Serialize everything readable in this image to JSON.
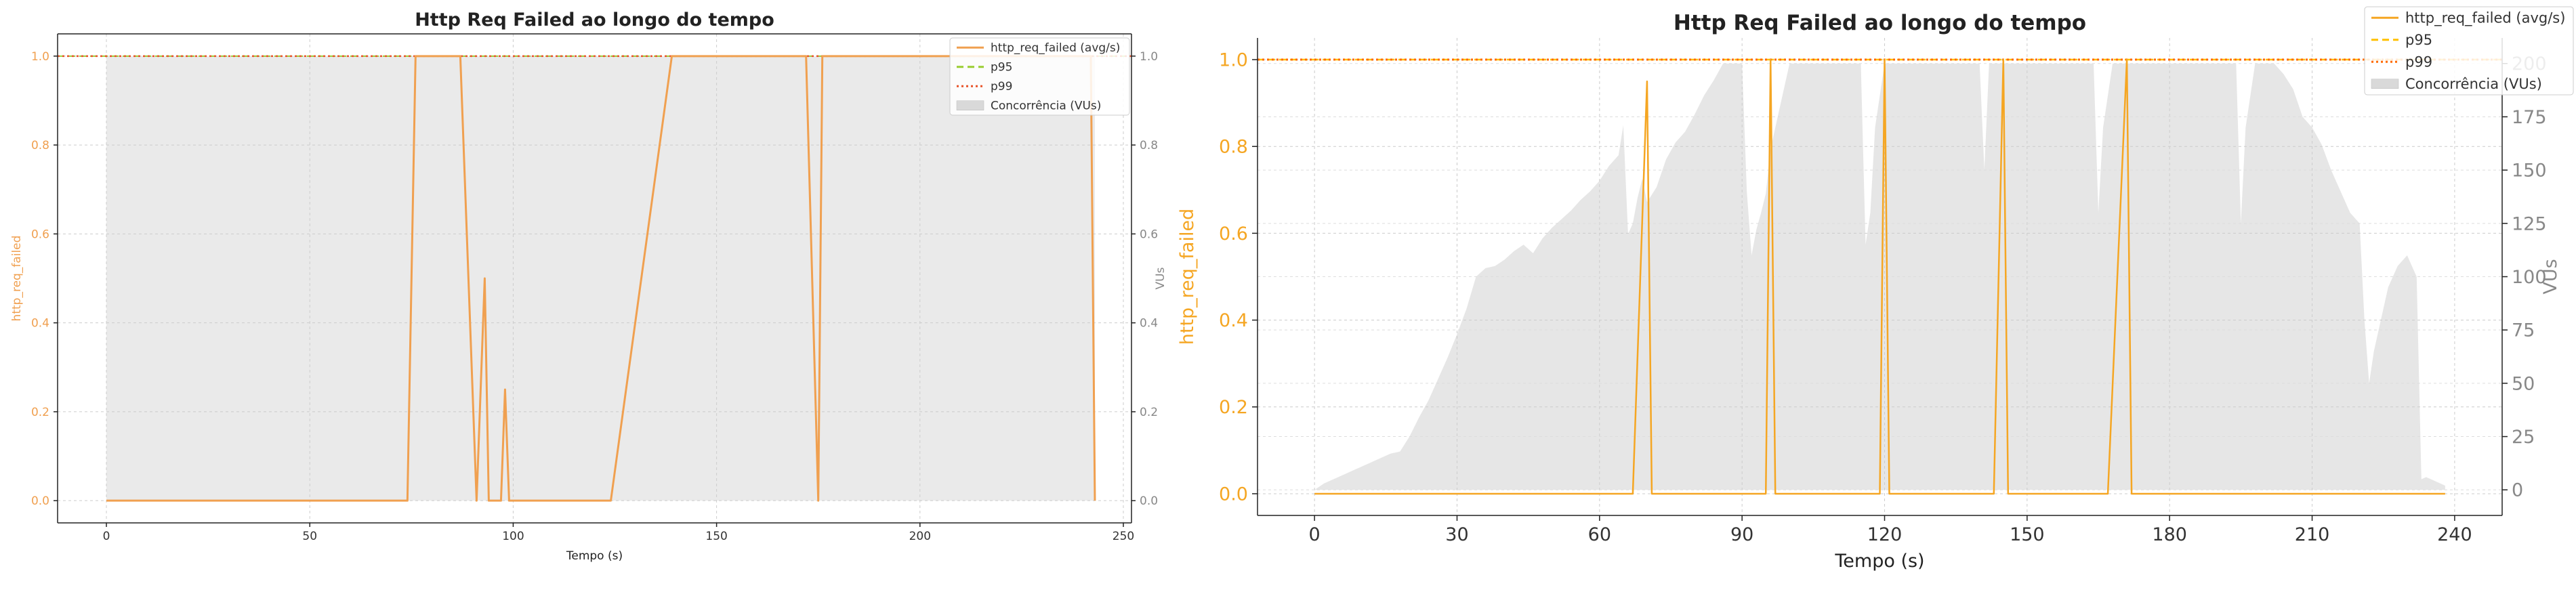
{
  "chart_data": [
    {
      "type": "line",
      "title": "Http Req Failed ao longo do tempo",
      "xlabel": "Tempo (s)",
      "ylabel": "http_req_failed",
      "y2label": "VUs",
      "xlim": [
        -12,
        252
      ],
      "ylim": [
        -0.05,
        1.05
      ],
      "y2lim": [
        -0.05,
        1.05
      ],
      "xticks": [
        0,
        50,
        100,
        150,
        200,
        250
      ],
      "yticks": [
        0.0,
        0.2,
        0.4,
        0.6,
        0.8,
        1.0
      ],
      "y2ticks": [
        0.0,
        0.2,
        0.4,
        0.6,
        0.8,
        1.0
      ],
      "grid": true,
      "legend_position": "top-right",
      "colors": {
        "line": "#f0a050",
        "p95": "#9acd32",
        "p99": "#e8542a",
        "area": "#d9d9d9"
      },
      "series": [
        {
          "name": "http_req_failed (avg/s)",
          "x": [
            0,
            74,
            76,
            87,
            91,
            93,
            94,
            97,
            98,
            99,
            101,
            124,
            139,
            172,
            175,
            176,
            178,
            242,
            243
          ],
          "y": [
            0,
            0,
            1,
            1,
            0,
            0.5,
            0,
            0,
            0.25,
            0,
            0,
            0,
            1,
            1,
            0,
            1,
            1,
            1,
            0
          ]
        }
      ],
      "p95": 1.0,
      "p99": 1.0,
      "vus_area": {
        "x": [
          0,
          243
        ],
        "y": [
          1,
          1
        ]
      },
      "legend": [
        "http_req_failed (avg/s)",
        "p95",
        "p99",
        "Concorrência (VUs)"
      ]
    },
    {
      "type": "line",
      "title": "Http Req Failed ao longo do tempo",
      "xlabel": "Tempo (s)",
      "ylabel": "http_req_failed",
      "y2label": "VUs",
      "xlim": [
        -12,
        250
      ],
      "ylim": [
        -0.05,
        1.05
      ],
      "y2lim": [
        -12,
        212
      ],
      "xticks": [
        0,
        30,
        60,
        90,
        120,
        150,
        180,
        210,
        240
      ],
      "yticks": [
        0.0,
        0.2,
        0.4,
        0.6,
        0.8,
        1.0
      ],
      "y2ticks": [
        0,
        25,
        50,
        75,
        100,
        125,
        150,
        175,
        200
      ],
      "grid": true,
      "legend_position": "top-right",
      "colors": {
        "line": "#f5a623",
        "p95": "#ffc000",
        "p99": "#ff6a00",
        "area": "#d9d9d9"
      },
      "series": [
        {
          "name": "http_req_failed (avg/s)",
          "x": [
            0,
            67,
            70,
            71,
            72,
            95,
            96,
            97,
            98,
            119,
            120,
            121,
            122,
            143,
            145,
            146,
            147,
            167,
            171,
            172,
            173,
            238
          ],
          "y": [
            0,
            0,
            0.95,
            0,
            0,
            0,
            1,
            0,
            0,
            0,
            1,
            0,
            0,
            0,
            1,
            0,
            0,
            0,
            1,
            0,
            0,
            0
          ]
        }
      ],
      "p95": 1.0,
      "p99": 1.0,
      "vus_area": {
        "x": [
          0,
          2,
          4,
          6,
          8,
          10,
          12,
          14,
          16,
          18,
          20,
          22,
          24,
          26,
          28,
          30,
          32,
          34,
          36,
          38,
          40,
          42,
          44,
          46,
          48,
          50,
          52,
          54,
          56,
          58,
          60,
          62,
          64,
          65,
          66,
          67,
          68,
          69,
          70,
          72,
          74,
          76,
          78,
          80,
          82,
          84,
          86,
          88,
          90,
          91,
          92,
          93,
          94,
          95,
          96,
          98,
          100,
          104,
          108,
          112,
          115,
          116,
          117,
          118,
          120,
          122,
          124,
          126,
          130,
          135,
          140,
          141,
          142,
          146,
          150,
          155,
          160,
          164,
          165,
          166,
          168,
          170,
          172,
          174,
          176,
          180,
          185,
          190,
          194,
          195,
          196,
          198,
          200,
          202,
          204,
          206,
          208,
          210,
          212,
          214,
          216,
          218,
          220,
          221,
          222,
          223,
          224,
          226,
          228,
          230,
          231,
          232,
          233,
          234,
          236,
          238
        ],
        "y": [
          0,
          3,
          5,
          7,
          9,
          11,
          13,
          15,
          17,
          18,
          25,
          34,
          42,
          52,
          62,
          73,
          85,
          100,
          104,
          105,
          108,
          112,
          115,
          111,
          118,
          123,
          127,
          131,
          136,
          140,
          145,
          152,
          157,
          171,
          120,
          125,
          137,
          146,
          135,
          142,
          155,
          163,
          168,
          176,
          185,
          192,
          200,
          200,
          200,
          140,
          110,
          122,
          130,
          139,
          160,
          180,
          200,
          200,
          200,
          200,
          200,
          115,
          130,
          170,
          200,
          200,
          200,
          200,
          200,
          200,
          200,
          150,
          200,
          200,
          200,
          200,
          200,
          200,
          130,
          170,
          200,
          200,
          200,
          200,
          200,
          200,
          200,
          200,
          200,
          125,
          170,
          200,
          200,
          200,
          195,
          188,
          175,
          170,
          162,
          150,
          140,
          130,
          125,
          80,
          50,
          65,
          75,
          95,
          105,
          110,
          105,
          100,
          5,
          6,
          4,
          2
        ]
      },
      "legend": [
        "http_req_failed (avg/s)",
        "p95",
        "p99",
        "Concorrência (VUs)"
      ]
    }
  ]
}
